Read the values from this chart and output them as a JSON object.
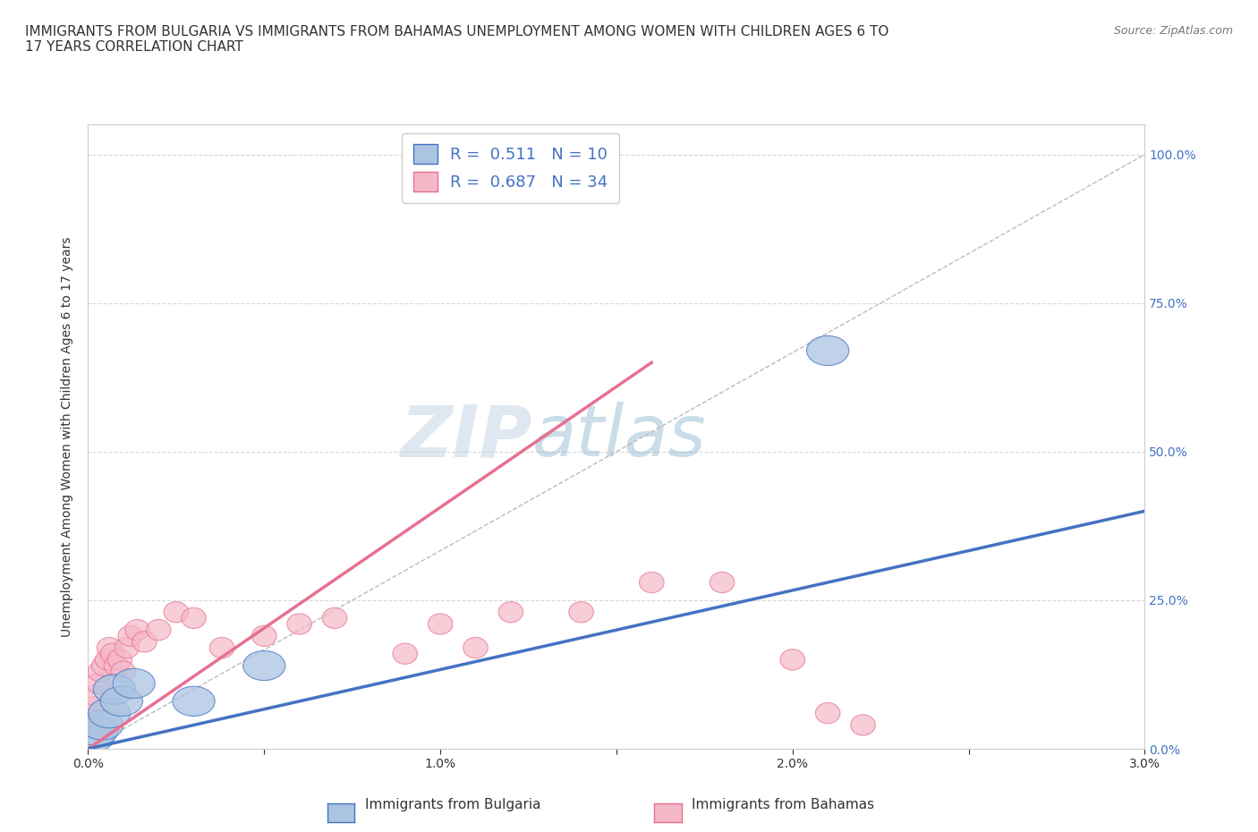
{
  "title": "IMMIGRANTS FROM BULGARIA VS IMMIGRANTS FROM BAHAMAS UNEMPLOYMENT AMONG WOMEN WITH CHILDREN AGES 6 TO\n17 YEARS CORRELATION CHART",
  "source": "Source: ZipAtlas.com",
  "ylabel": "Unemployment Among Women with Children Ages 6 to 17 years",
  "xlim": [
    0.0,
    0.03
  ],
  "ylim": [
    0.0,
    1.05
  ],
  "xticks": [
    0.0,
    0.005,
    0.01,
    0.015,
    0.02,
    0.025,
    0.03
  ],
  "xticklabels": [
    "0.0%",
    "",
    "1.0%",
    "",
    "2.0%",
    "",
    "3.0%"
  ],
  "yticks": [
    0.0,
    0.25,
    0.5,
    0.75,
    1.0
  ],
  "yticklabels": [
    "0.0%",
    "25.0%",
    "50.0%",
    "75.0%",
    "100.0%"
  ],
  "legend_r1": "R =  0.511   N = 10",
  "legend_r2": "R =  0.687   N = 34",
  "bulgaria_color": "#aac4e2",
  "bahamas_color": "#f5b8c8",
  "bulgaria_line_color": "#4472c4",
  "bahamas_line_color": "#e87090",
  "bulgaria_x": [
    0.00015,
    0.00025,
    0.0004,
    0.0006,
    0.00075,
    0.00095,
    0.0013,
    0.003,
    0.005,
    0.021
  ],
  "bulgaria_y": [
    0.02,
    0.03,
    0.04,
    0.06,
    0.1,
    0.08,
    0.11,
    0.08,
    0.14,
    0.67
  ],
  "bahamas_x": [
    5e-05,
    0.0001,
    0.00015,
    0.0002,
    0.0003,
    0.00035,
    0.00045,
    0.00055,
    0.0006,
    0.0007,
    0.0008,
    0.0009,
    0.001,
    0.0011,
    0.0012,
    0.0014,
    0.0016,
    0.002,
    0.0025,
    0.003,
    0.0038,
    0.005,
    0.006,
    0.007,
    0.009,
    0.01,
    0.011,
    0.012,
    0.014,
    0.016,
    0.018,
    0.02,
    0.021,
    0.022
  ],
  "bahamas_y": [
    0.04,
    0.05,
    0.07,
    0.09,
    0.11,
    0.13,
    0.14,
    0.15,
    0.17,
    0.16,
    0.14,
    0.15,
    0.13,
    0.17,
    0.19,
    0.2,
    0.18,
    0.2,
    0.23,
    0.22,
    0.17,
    0.19,
    0.21,
    0.22,
    0.16,
    0.21,
    0.17,
    0.23,
    0.23,
    0.28,
    0.28,
    0.15,
    0.06,
    0.04
  ],
  "bahamas_line_x0": 0.0,
  "bahamas_line_y0": 0.0,
  "bahamas_line_x1": 0.016,
  "bahamas_line_y1": 0.65,
  "bulgaria_line_x0": 0.0,
  "bulgaria_line_y0": 0.0,
  "bulgaria_line_x1": 0.03,
  "bulgaria_line_y1": 0.4,
  "background_color": "#ffffff",
  "grid_color": "#d8d8d8"
}
